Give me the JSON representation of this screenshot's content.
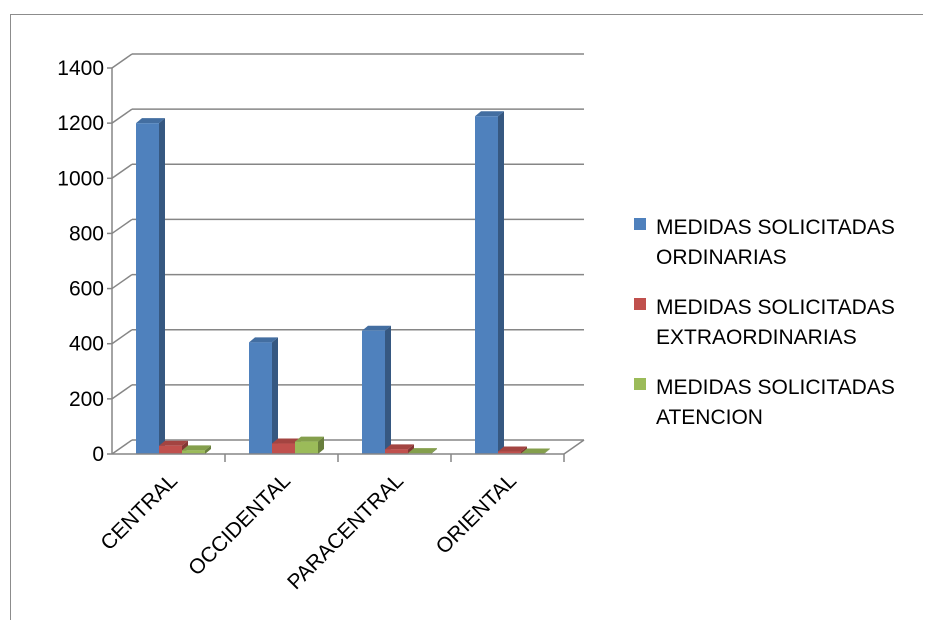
{
  "chart_data": {
    "type": "bar",
    "categories": [
      "CENTRAL",
      "OCCIDENTAL",
      "PARACENTRAL",
      "ORIENTAL"
    ],
    "series": [
      {
        "name": "MEDIDAS SOLICITADAS ORDINARIAS",
        "color": "#4f81bd",
        "values": [
          1200,
          405,
          447,
          1225
        ]
      },
      {
        "name": "MEDIDAS SOLICITADAS EXTRAORDINARIAS",
        "color": "#c0504d",
        "values": [
          30,
          38,
          17,
          9
        ]
      },
      {
        "name": "MEDIDAS SOLICITADAS ATENCION",
        "color": "#9bbb59",
        "values": [
          13,
          45,
          3,
          2
        ]
      }
    ],
    "yticks": [
      0,
      200,
      400,
      600,
      800,
      1000,
      1200,
      1400
    ],
    "ylim": [
      0,
      1400
    ],
    "title": "",
    "xlabel": "",
    "ylabel": "",
    "grid": true,
    "three_d": true,
    "legend_position": "right"
  },
  "legend": [
    {
      "line1": "MEDIDAS SOLICITADAS",
      "line2": "ORDINARIAS"
    },
    {
      "line1": "MEDIDAS SOLICITADAS",
      "line2": "EXTRAORDINARIAS"
    },
    {
      "line1": "MEDIDAS SOLICITADAS",
      "line2": "ATENCION"
    }
  ]
}
